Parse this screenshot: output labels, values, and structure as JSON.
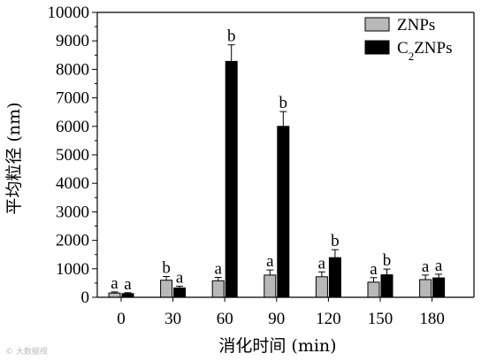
{
  "chart_data": {
    "type": "bar",
    "categories": [
      "0",
      "30",
      "60",
      "90",
      "120",
      "150",
      "180"
    ],
    "xlabel": "消化时间 (min)",
    "ylabel": "平均粒径 (nm)",
    "ylim": [
      0,
      10000
    ],
    "yticks": [
      0,
      1000,
      2000,
      3000,
      4000,
      5000,
      6000,
      7000,
      8000,
      9000,
      10000
    ],
    "legend_position": "top-right",
    "grid": false,
    "series": [
      {
        "name": "ZNPs",
        "color": "#b8b8b8",
        "values": [
          150,
          600,
          580,
          780,
          720,
          530,
          620
        ],
        "errors": [
          40,
          130,
          120,
          180,
          170,
          160,
          160
        ],
        "labels": [
          "a",
          "b",
          "a",
          "a",
          "a",
          "a",
          "a"
        ]
      },
      {
        "name": "C2ZNPs",
        "color": "#000000",
        "values": [
          130,
          330,
          8280,
          6000,
          1390,
          790,
          680
        ],
        "errors": [
          30,
          60,
          580,
          520,
          280,
          200,
          130
        ],
        "labels": [
          "a",
          "a",
          "b",
          "b",
          "b",
          "b",
          "a"
        ]
      }
    ]
  },
  "watermark": "© 大数据视 "
}
